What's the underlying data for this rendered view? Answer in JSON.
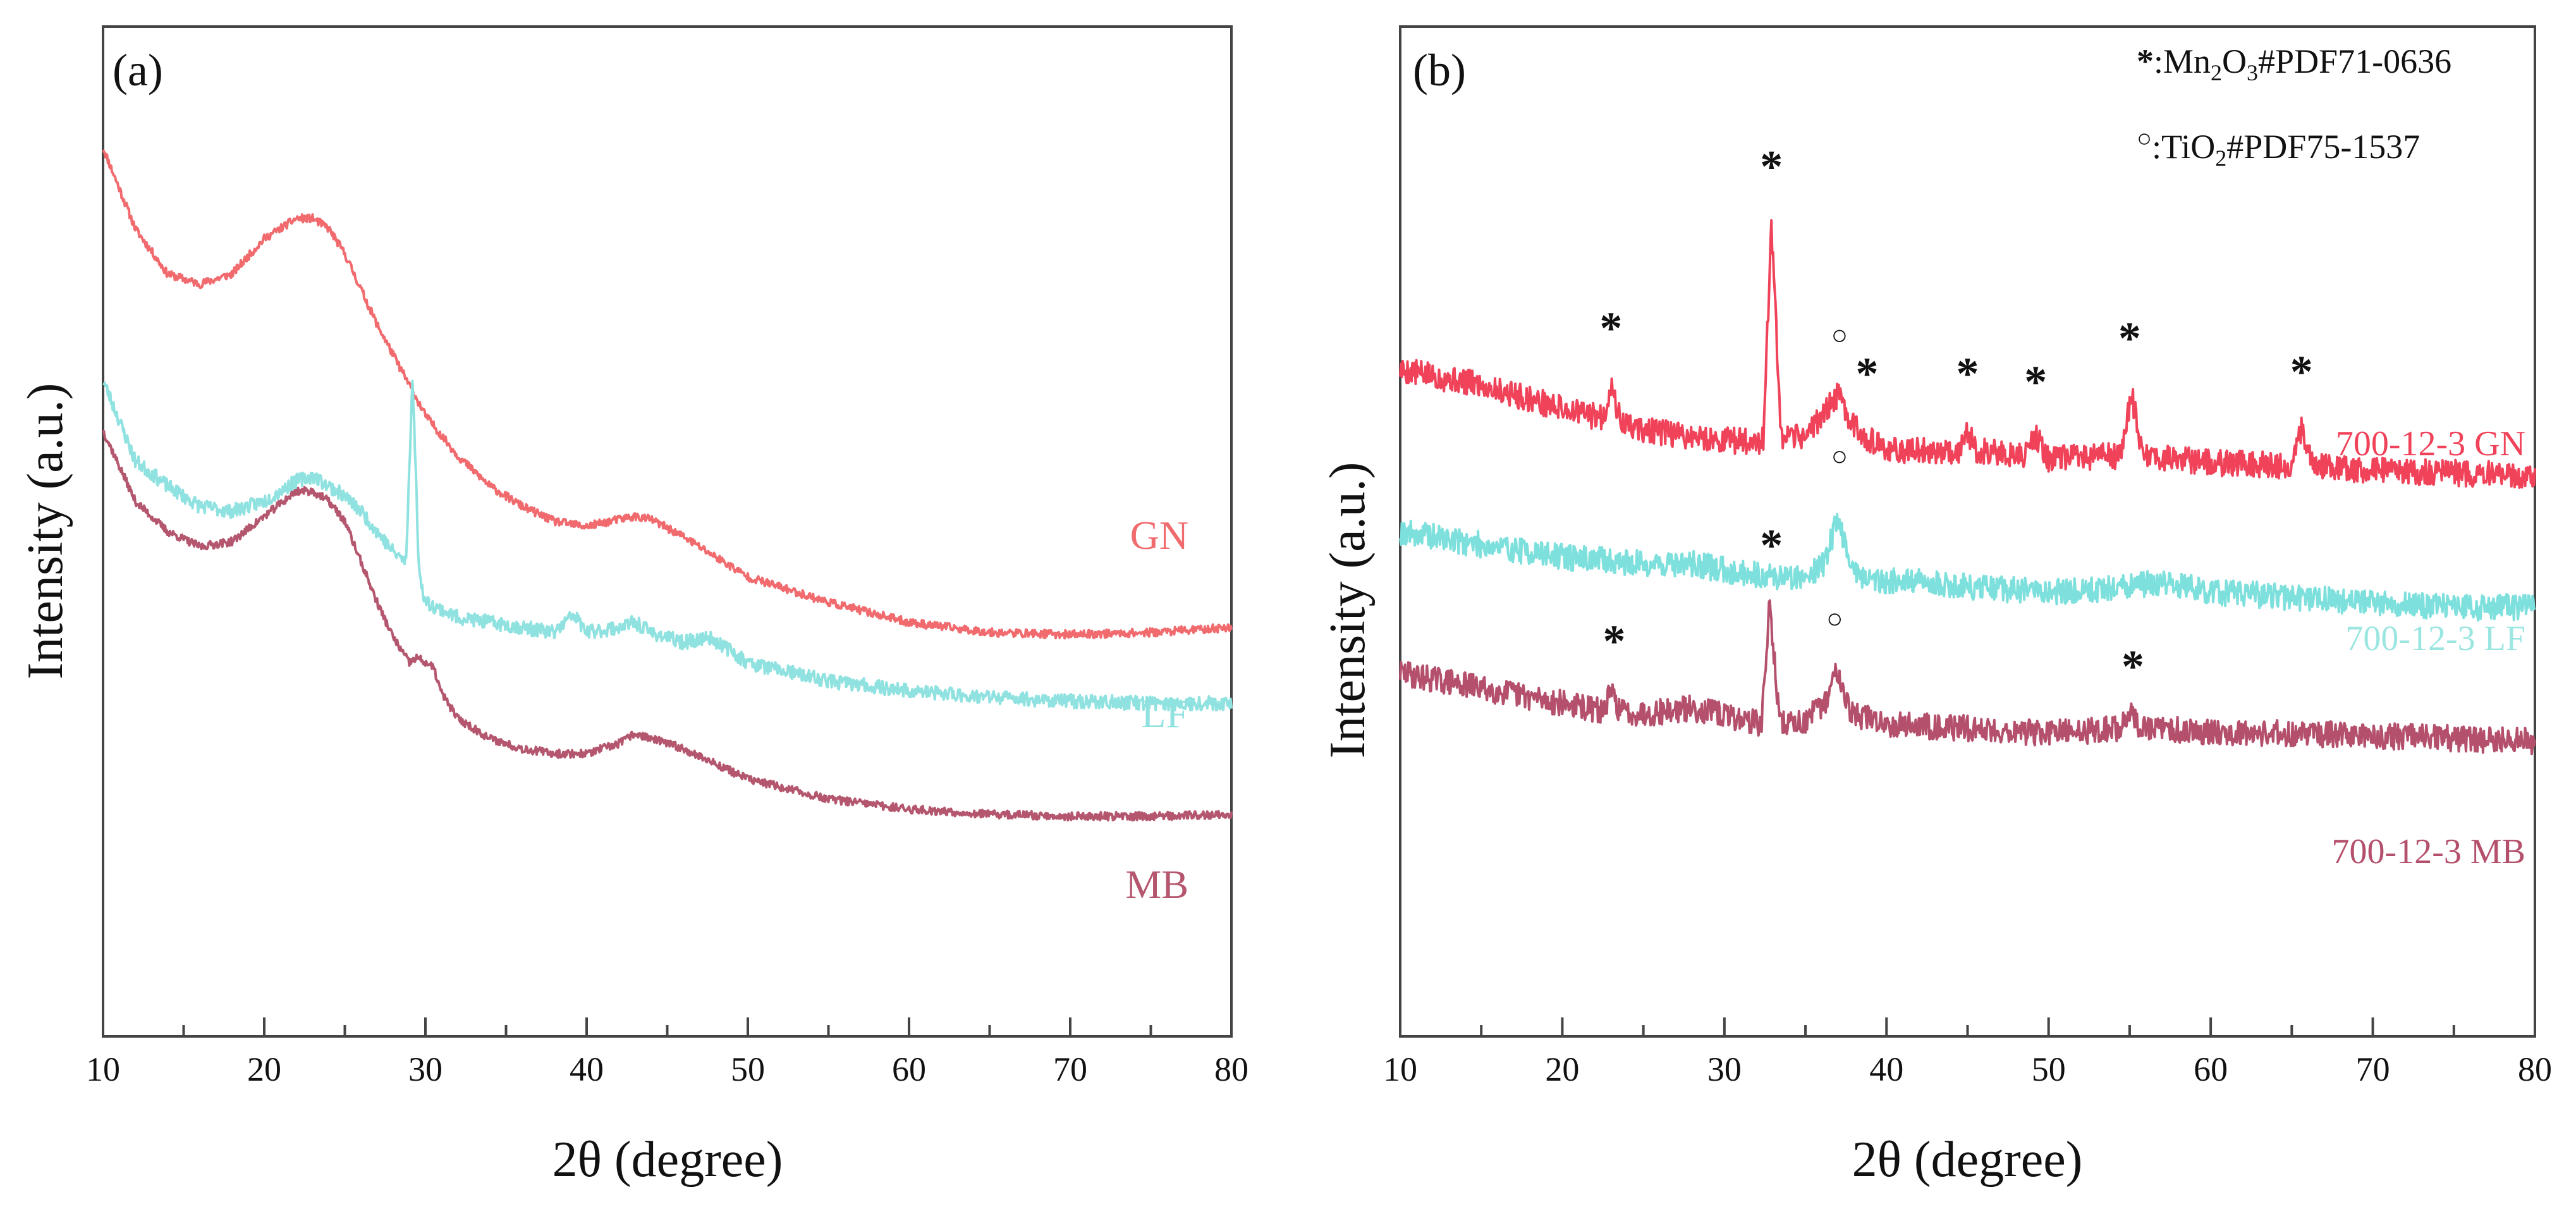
{
  "chart_data": [
    {
      "type": "line",
      "panel_label": "(a)",
      "xlabel": "2θ (degree)",
      "ylabel": "Intensity (a.u.)",
      "xlim": [
        10,
        80
      ],
      "ylim": [
        0,
        1
      ],
      "x_ticks": [
        "10",
        "20",
        "30",
        "40",
        "50",
        "60",
        "70",
        "80"
      ],
      "x_ticks_values": [
        10,
        20,
        30,
        40,
        50,
        60,
        70,
        80
      ],
      "minor_x_step": 5,
      "y_ticks_shown": false,
      "grid": false,
      "series": [
        {
          "name": "GN",
          "label": "GN",
          "color": "#f06a6e",
          "noise": 0.004,
          "seed": 11,
          "x": [
            10,
            12,
            14,
            16,
            18,
            20,
            22,
            23,
            24,
            25,
            26,
            27,
            28,
            29,
            30,
            32,
            34,
            36,
            38,
            40,
            42,
            43,
            44,
            46,
            48,
            50,
            55,
            60,
            65,
            70,
            75,
            80
          ],
          "y": [
            0.88,
            0.8,
            0.755,
            0.745,
            0.755,
            0.79,
            0.81,
            0.81,
            0.8,
            0.775,
            0.74,
            0.705,
            0.675,
            0.645,
            0.615,
            0.575,
            0.545,
            0.525,
            0.51,
            0.505,
            0.512,
            0.515,
            0.512,
            0.495,
            0.475,
            0.455,
            0.43,
            0.41,
            0.4,
            0.398,
            0.4,
            0.405
          ]
        },
        {
          "name": "LF",
          "label": "LF",
          "color": "#8fe2e0",
          "noise": 0.007,
          "seed": 23,
          "x": [
            10,
            12,
            14,
            16,
            18,
            20,
            22,
            23,
            24,
            25,
            26,
            27,
            28,
            28.8,
            29.2,
            29.6,
            30,
            32,
            34,
            36,
            38,
            39.2,
            40,
            42,
            43,
            44,
            46,
            47.5,
            48.2,
            50,
            55,
            60,
            65,
            70,
            75,
            80
          ],
          "y": [
            0.65,
            0.57,
            0.545,
            0.525,
            0.52,
            0.53,
            0.55,
            0.555,
            0.545,
            0.535,
            0.52,
            0.5,
            0.48,
            0.47,
            0.655,
            0.46,
            0.43,
            0.415,
            0.41,
            0.405,
            0.4,
            0.418,
            0.4,
            0.405,
            0.41,
            0.4,
            0.39,
            0.395,
            0.39,
            0.37,
            0.352,
            0.342,
            0.336,
            0.332,
            0.33,
            0.33
          ]
        },
        {
          "name": "MB",
          "label": "MB",
          "color": "#b4566e",
          "noise": 0.004,
          "seed": 37,
          "x": [
            10,
            12,
            14,
            16,
            18,
            20,
            22,
            23,
            24,
            25,
            26,
            27,
            28,
            29,
            29.5,
            30.5,
            31,
            32,
            34,
            36,
            38,
            40,
            42,
            43,
            44,
            46,
            48,
            50,
            55,
            60,
            65,
            70,
            75,
            80
          ],
          "y": [
            0.6,
            0.53,
            0.5,
            0.485,
            0.49,
            0.515,
            0.54,
            0.54,
            0.53,
            0.51,
            0.47,
            0.43,
            0.395,
            0.37,
            0.375,
            0.365,
            0.34,
            0.315,
            0.295,
            0.285,
            0.28,
            0.28,
            0.29,
            0.3,
            0.295,
            0.285,
            0.27,
            0.255,
            0.235,
            0.225,
            0.22,
            0.218,
            0.218,
            0.22
          ]
        }
      ]
    },
    {
      "type": "line",
      "panel_label": "(b)",
      "xlabel": "2θ (degree)",
      "ylabel": "Intensity (a.u.)",
      "xlim": [
        10,
        80
      ],
      "ylim": [
        0,
        1
      ],
      "x_ticks": [
        "10",
        "20",
        "30",
        "40",
        "50",
        "60",
        "70",
        "80"
      ],
      "x_ticks_values": [
        10,
        20,
        30,
        40,
        50,
        60,
        70,
        80
      ],
      "minor_x_step": 5,
      "y_ticks_shown": false,
      "grid": false,
      "legend": {
        "placement": "top-right",
        "entries": [
          {
            "symbol": "*",
            "text_prefix": ":Mn",
            "sub1": "2",
            "text_mid": "O",
            "sub2": "3",
            "text_suffix": "#PDF71-0636"
          },
          {
            "symbol": "○",
            "text_prefix": ":TiO",
            "sub1": "2",
            "text_mid": "",
            "sub2": "",
            "text_suffix": "#PDF75-1537"
          }
        ]
      },
      "series": [
        {
          "name": "700-12-3 GN",
          "label": "700-12-3 GN",
          "color": "#f0435a",
          "noise": 0.013,
          "seed": 5,
          "x": [
            10,
            15,
            20,
            22.5,
            23,
            23.6,
            25,
            30,
            32.4,
            32.9,
            33.5,
            35,
            36,
            37,
            38,
            39,
            40,
            44.5,
            45,
            45.5,
            48.5,
            49.2,
            50,
            54.5,
            55.1,
            55.8,
            60,
            65,
            65.6,
            66.3,
            70,
            75,
            80
          ],
          "y": [
            0.66,
            0.645,
            0.622,
            0.612,
            0.645,
            0.608,
            0.6,
            0.59,
            0.59,
            0.805,
            0.59,
            0.595,
            0.615,
            0.635,
            0.605,
            0.59,
            0.58,
            0.58,
            0.6,
            0.58,
            0.575,
            0.595,
            0.572,
            0.575,
            0.638,
            0.575,
            0.568,
            0.565,
            0.6,
            0.565,
            0.56,
            0.558,
            0.555
          ]
        },
        {
          "name": "700-12-3 LF",
          "label": "700-12-3 LF",
          "color": "#7ee0dc",
          "noise": 0.013,
          "seed": 19,
          "x": [
            10,
            15,
            20,
            25,
            28,
            30,
            33,
            35,
            36.2,
            37,
            37.8,
            39,
            42,
            45,
            50,
            55,
            57,
            60,
            65,
            70,
            75,
            80
          ],
          "y": [
            0.5,
            0.487,
            0.475,
            0.468,
            0.468,
            0.462,
            0.455,
            0.455,
            0.47,
            0.515,
            0.465,
            0.452,
            0.45,
            0.445,
            0.44,
            0.445,
            0.45,
            0.44,
            0.435,
            0.43,
            0.425,
            0.425
          ]
        },
        {
          "name": "700-12-3 MB",
          "label": "700-12-3 MB",
          "color": "#b4506c",
          "noise": 0.013,
          "seed": 29,
          "x": [
            10,
            15,
            20,
            22.5,
            23,
            23.6,
            25,
            28,
            30,
            32.3,
            32.8,
            33.4,
            35,
            36.2,
            37,
            37.8,
            40,
            45,
            50,
            54.5,
            55,
            55.6,
            60,
            65,
            70,
            75,
            80
          ],
          "y": [
            0.36,
            0.345,
            0.33,
            0.322,
            0.34,
            0.322,
            0.32,
            0.325,
            0.318,
            0.31,
            0.43,
            0.31,
            0.312,
            0.33,
            0.365,
            0.32,
            0.31,
            0.305,
            0.3,
            0.305,
            0.325,
            0.305,
            0.302,
            0.3,
            0.298,
            0.295,
            0.292
          ]
        }
      ],
      "annotations": [
        {
          "symbol": "*",
          "x": 23,
          "y": 0.705
        },
        {
          "symbol": "*",
          "x": 32.9,
          "y": 0.865
        },
        {
          "symbol": "○",
          "x": 37.1,
          "y": 0.693
        },
        {
          "symbol": "*",
          "x": 38.8,
          "y": 0.66
        },
        {
          "symbol": "*",
          "x": 45,
          "y": 0.66
        },
        {
          "symbol": "*",
          "x": 49.2,
          "y": 0.652
        },
        {
          "symbol": "*",
          "x": 55,
          "y": 0.695
        },
        {
          "symbol": "*",
          "x": 65.6,
          "y": 0.662
        },
        {
          "symbol": "○",
          "x": 37.1,
          "y": 0.573
        },
        {
          "symbol": "*",
          "x": 23.2,
          "y": 0.395
        },
        {
          "symbol": "*",
          "x": 32.9,
          "y": 0.49
        },
        {
          "symbol": "○",
          "x": 36.8,
          "y": 0.412
        },
        {
          "symbol": "*",
          "x": 55.2,
          "y": 0.37
        }
      ]
    }
  ]
}
